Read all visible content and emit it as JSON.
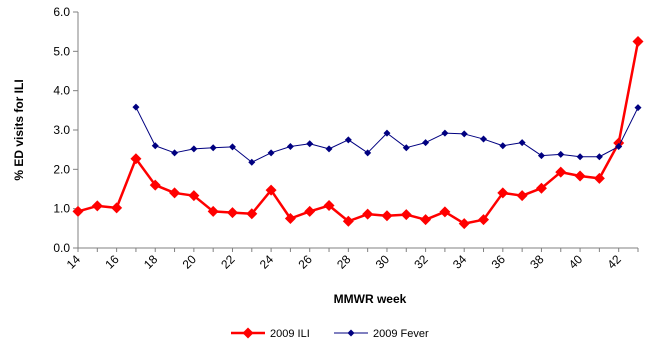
{
  "chart_data": {
    "type": "line",
    "title": "",
    "xlabel": "MMWR week",
    "ylabel": "% ED visits for ILI",
    "xlim": [
      14,
      43
    ],
    "ylim": [
      0,
      6
    ],
    "y_ticks": [
      "0.0",
      "1.0",
      "2.0",
      "3.0",
      "4.0",
      "5.0",
      "6.0"
    ],
    "x_ticks": [
      "14",
      "16",
      "18",
      "20",
      "22",
      "24",
      "26",
      "28",
      "30",
      "32",
      "34",
      "36",
      "38",
      "40",
      "42"
    ],
    "grid": false,
    "legend_position": "bottom",
    "series": [
      {
        "name": "2009 ILI",
        "color": "#ff0000",
        "marker": "diamond",
        "x": [
          14,
          15,
          16,
          17,
          18,
          19,
          20,
          21,
          22,
          23,
          24,
          25,
          26,
          27,
          28,
          29,
          30,
          31,
          32,
          33,
          34,
          35,
          36,
          37,
          38,
          39,
          40,
          41,
          42,
          43
        ],
        "values": [
          0.93,
          1.07,
          1.02,
          2.27,
          1.6,
          1.4,
          1.33,
          0.93,
          0.9,
          0.87,
          1.47,
          0.75,
          0.93,
          1.08,
          0.68,
          0.86,
          0.82,
          0.85,
          0.72,
          0.92,
          0.62,
          0.72,
          1.4,
          1.33,
          1.52,
          1.93,
          1.83,
          1.77,
          2.67,
          5.25
        ]
      },
      {
        "name": "2009 Fever",
        "color": "#000080",
        "marker": "diamond",
        "x": [
          17,
          18,
          19,
          20,
          21,
          22,
          23,
          24,
          25,
          26,
          27,
          28,
          29,
          30,
          31,
          32,
          33,
          34,
          35,
          36,
          37,
          38,
          39,
          40,
          41,
          42,
          43
        ],
        "values": [
          3.58,
          2.6,
          2.42,
          2.52,
          2.55,
          2.57,
          2.18,
          2.42,
          2.58,
          2.65,
          2.52,
          2.75,
          2.42,
          2.92,
          2.55,
          2.68,
          2.92,
          2.9,
          2.77,
          2.6,
          2.68,
          2.35,
          2.38,
          2.32,
          2.32,
          2.58,
          3.57
        ]
      }
    ]
  }
}
